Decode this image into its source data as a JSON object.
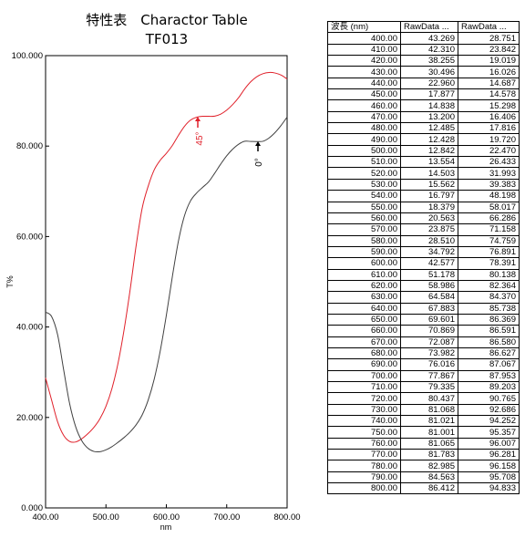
{
  "chart_data": {
    "type": "line",
    "title_line1": "特性表　Charactor Table",
    "title_line2": "TF013",
    "xlabel": "nm",
    "ylabel": "T%",
    "xlim": [
      400,
      800
    ],
    "ylim": [
      0,
      100
    ],
    "x_ticks": [
      "400.00",
      "500.00",
      "600.00",
      "700.00",
      "800.00"
    ],
    "y_ticks": [
      "0.000",
      "20.000",
      "40.000",
      "60.000",
      "80.000",
      "100.000"
    ],
    "series": [
      {
        "name": "45°",
        "color": "#e0202a",
        "x": [
          400,
          410,
          420,
          430,
          440,
          450,
          460,
          470,
          480,
          490,
          500,
          510,
          520,
          530,
          540,
          550,
          560,
          570,
          580,
          590,
          600,
          610,
          620,
          630,
          640,
          650,
          660,
          670,
          680,
          690,
          700,
          710,
          720,
          730,
          740,
          750,
          760,
          770,
          780,
          790,
          800
        ],
        "values": [
          28.751,
          23.842,
          19.019,
          16.026,
          14.687,
          14.578,
          15.298,
          16.406,
          17.816,
          19.72,
          22.47,
          26.433,
          31.993,
          39.383,
          48.198,
          58.017,
          66.286,
          71.158,
          74.759,
          76.891,
          78.391,
          80.138,
          82.364,
          84.37,
          85.738,
          86.369,
          86.591,
          86.58,
          86.627,
          87.067,
          87.953,
          89.203,
          90.765,
          92.686,
          94.252,
          95.357,
          96.007,
          96.281,
          96.158,
          95.708,
          94.833
        ]
      },
      {
        "name": "0°",
        "color": "#404040",
        "x": [
          400,
          410,
          420,
          430,
          440,
          450,
          460,
          470,
          480,
          490,
          500,
          510,
          520,
          530,
          540,
          550,
          560,
          570,
          580,
          590,
          600,
          610,
          620,
          630,
          640,
          650,
          660,
          670,
          680,
          690,
          700,
          710,
          720,
          730,
          740,
          750,
          760,
          770,
          780,
          790,
          800
        ],
        "values": [
          43.269,
          42.31,
          38.255,
          30.496,
          22.96,
          17.877,
          14.838,
          13.2,
          12.485,
          12.428,
          12.842,
          13.554,
          14.503,
          15.562,
          16.797,
          18.379,
          20.563,
          23.875,
          28.51,
          34.792,
          42.577,
          51.178,
          58.986,
          64.584,
          67.883,
          69.601,
          70.869,
          72.087,
          73.982,
          76.016,
          77.867,
          79.335,
          80.437,
          81.068,
          81.021,
          81.001,
          81.065,
          81.783,
          82.985,
          84.563,
          86.412
        ]
      }
    ],
    "annotations": [
      "45°",
      "0°"
    ]
  },
  "table": {
    "headers": [
      "波長 (nm)",
      "RawData ...",
      "RawData ..."
    ],
    "rows": [
      [
        "400.00",
        "43.269",
        "28.751"
      ],
      [
        "410.00",
        "42.310",
        "23.842"
      ],
      [
        "420.00",
        "38.255",
        "19.019"
      ],
      [
        "430.00",
        "30.496",
        "16.026"
      ],
      [
        "440.00",
        "22.960",
        "14.687"
      ],
      [
        "450.00",
        "17.877",
        "14.578"
      ],
      [
        "460.00",
        "14.838",
        "15.298"
      ],
      [
        "470.00",
        "13.200",
        "16.406"
      ],
      [
        "480.00",
        "12.485",
        "17.816"
      ],
      [
        "490.00",
        "12.428",
        "19.720"
      ],
      [
        "500.00",
        "12.842",
        "22.470"
      ],
      [
        "510.00",
        "13.554",
        "26.433"
      ],
      [
        "520.00",
        "14.503",
        "31.993"
      ],
      [
        "530.00",
        "15.562",
        "39.383"
      ],
      [
        "540.00",
        "16.797",
        "48.198"
      ],
      [
        "550.00",
        "18.379",
        "58.017"
      ],
      [
        "560.00",
        "20.563",
        "66.286"
      ],
      [
        "570.00",
        "23.875",
        "71.158"
      ],
      [
        "580.00",
        "28.510",
        "74.759"
      ],
      [
        "590.00",
        "34.792",
        "76.891"
      ],
      [
        "600.00",
        "42.577",
        "78.391"
      ],
      [
        "610.00",
        "51.178",
        "80.138"
      ],
      [
        "620.00",
        "58.986",
        "82.364"
      ],
      [
        "630.00",
        "64.584",
        "84.370"
      ],
      [
        "640.00",
        "67.883",
        "85.738"
      ],
      [
        "650.00",
        "69.601",
        "86.369"
      ],
      [
        "660.00",
        "70.869",
        "86.591"
      ],
      [
        "670.00",
        "72.087",
        "86.580"
      ],
      [
        "680.00",
        "73.982",
        "86.627"
      ],
      [
        "690.00",
        "76.016",
        "87.067"
      ],
      [
        "700.00",
        "77.867",
        "87.953"
      ],
      [
        "710.00",
        "79.335",
        "89.203"
      ],
      [
        "720.00",
        "80.437",
        "90.765"
      ],
      [
        "730.00",
        "81.068",
        "92.686"
      ],
      [
        "740.00",
        "81.021",
        "94.252"
      ],
      [
        "750.00",
        "81.001",
        "95.357"
      ],
      [
        "760.00",
        "81.065",
        "96.007"
      ],
      [
        "770.00",
        "81.783",
        "96.281"
      ],
      [
        "780.00",
        "82.985",
        "96.158"
      ],
      [
        "790.00",
        "84.563",
        "95.708"
      ],
      [
        "800.00",
        "86.412",
        "94.833"
      ]
    ]
  }
}
